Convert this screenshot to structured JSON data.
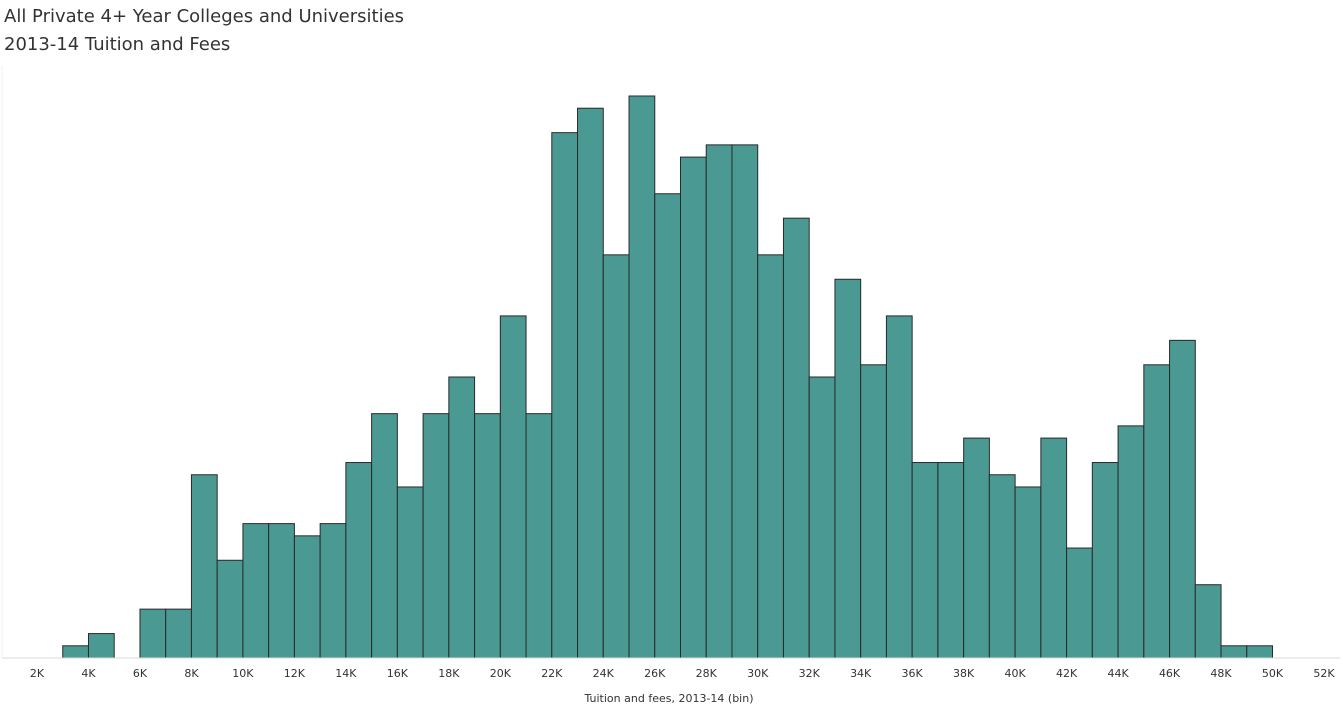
{
  "chart_data": {
    "type": "bar",
    "title": "All Private 4+ Year Colleges and Universities",
    "subtitle": "2013-14 Tuition and Fees",
    "xlabel": "Tuition and fees, 2013-14 (bin)",
    "ylabel": "",
    "grid": false,
    "bin_width": 1000,
    "xlim": [
      2000,
      52000
    ],
    "ylim": [
      0,
      47
    ],
    "x_ticks": [
      2000,
      4000,
      6000,
      8000,
      10000,
      12000,
      14000,
      16000,
      18000,
      20000,
      22000,
      24000,
      26000,
      28000,
      30000,
      32000,
      34000,
      36000,
      38000,
      40000,
      42000,
      44000,
      46000,
      48000,
      50000,
      52000
    ],
    "x_tick_labels": [
      "2K",
      "4K",
      "6K",
      "8K",
      "10K",
      "12K",
      "14K",
      "16K",
      "18K",
      "20K",
      "22K",
      "24K",
      "26K",
      "28K",
      "30K",
      "32K",
      "34K",
      "36K",
      "38K",
      "40K",
      "42K",
      "44K",
      "46K",
      "48K",
      "50K",
      "52K"
    ],
    "bin_starts": [
      3000,
      4000,
      5000,
      6000,
      7000,
      8000,
      9000,
      10000,
      11000,
      12000,
      13000,
      14000,
      15000,
      16000,
      17000,
      18000,
      19000,
      20000,
      21000,
      22000,
      23000,
      24000,
      25000,
      26000,
      27000,
      28000,
      29000,
      30000,
      31000,
      32000,
      33000,
      34000,
      35000,
      36000,
      37000,
      38000,
      39000,
      40000,
      41000,
      42000,
      43000,
      44000,
      45000,
      46000,
      47000,
      48000,
      49000
    ],
    "values": [
      1,
      2,
      0,
      4,
      4,
      15,
      8,
      11,
      11,
      10,
      11,
      16,
      20,
      14,
      20,
      23,
      20,
      28,
      20,
      43,
      45,
      33,
      46,
      38,
      41,
      42,
      42,
      33,
      36,
      23,
      31,
      24,
      28,
      16,
      16,
      18,
      15,
      14,
      18,
      9,
      16,
      19,
      24,
      26,
      6,
      1,
      1
    ]
  }
}
